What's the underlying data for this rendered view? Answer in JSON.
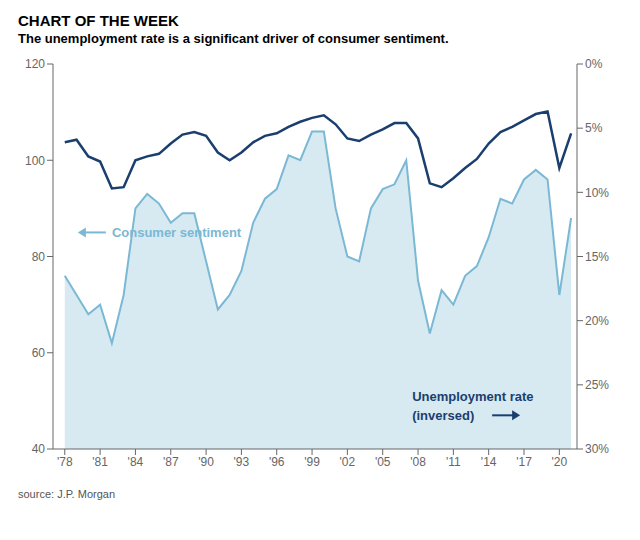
{
  "chart_data": {
    "type": "line",
    "title": "CHART OF THE WEEK",
    "subtitle": "The unemployment rate is a significant driver of consumer sentiment.",
    "source": "source: J.P. Morgan",
    "x": [
      1978,
      1979,
      1980,
      1981,
      1982,
      1983,
      1984,
      1985,
      1986,
      1987,
      1988,
      1989,
      1990,
      1991,
      1992,
      1993,
      1994,
      1995,
      1996,
      1997,
      1998,
      1999,
      2000,
      2001,
      2002,
      2003,
      2004,
      2005,
      2006,
      2007,
      2008,
      2009,
      2010,
      2011,
      2012,
      2013,
      2014,
      2015,
      2016,
      2017,
      2018,
      2019,
      2020,
      2021
    ],
    "xlim": [
      1977,
      2021.5
    ],
    "xticks": [
      {
        "value": 1978,
        "label": "'78"
      },
      {
        "value": 1981,
        "label": "'81"
      },
      {
        "value": 1984,
        "label": "'84"
      },
      {
        "value": 1987,
        "label": "'87"
      },
      {
        "value": 1990,
        "label": "'90"
      },
      {
        "value": 1993,
        "label": "'93"
      },
      {
        "value": 1996,
        "label": "'96"
      },
      {
        "value": 1999,
        "label": "'99"
      },
      {
        "value": 2002,
        "label": "'02"
      },
      {
        "value": 2005,
        "label": "'05"
      },
      {
        "value": 2008,
        "label": "'08"
      },
      {
        "value": 2011,
        "label": "'11"
      },
      {
        "value": 2014,
        "label": "'14"
      },
      {
        "value": 2017,
        "label": "'17"
      },
      {
        "value": 2020,
        "label": "'20"
      }
    ],
    "ylim": [
      40,
      120
    ],
    "yticks": [
      40,
      60,
      80,
      100,
      120
    ],
    "y2lim": [
      30,
      0
    ],
    "y2ticks": [
      {
        "value": 0,
        "label": "0%"
      },
      {
        "value": 5,
        "label": "5%"
      },
      {
        "value": 10,
        "label": "10%"
      },
      {
        "value": 15,
        "label": "15%"
      },
      {
        "value": 20,
        "label": "20%"
      },
      {
        "value": 25,
        "label": "25%"
      },
      {
        "value": 30,
        "label": "30%"
      }
    ],
    "grid": false,
    "series": [
      {
        "type": "area",
        "color": "#7bb8d4",
        "values": [
          76,
          72,
          68,
          70,
          62,
          72,
          90,
          93,
          91,
          87,
          89,
          89,
          79,
          69,
          72,
          77,
          87,
          92,
          94,
          101,
          100,
          106,
          106,
          90,
          80,
          79,
          90,
          94,
          95,
          100,
          75,
          64,
          73,
          70,
          76,
          78,
          84,
          92,
          91,
          96,
          98,
          96,
          72,
          88
        ]
      },
      {
        "type": "line",
        "color": "#1a3f6f",
        "axis": "y2",
        "values": [
          6.1,
          5.9,
          7.2,
          7.6,
          9.7,
          9.6,
          7.5,
          7.2,
          7.0,
          6.2,
          5.5,
          5.3,
          5.6,
          6.9,
          7.5,
          6.9,
          6.1,
          5.6,
          5.4,
          4.9,
          4.5,
          4.2,
          4.0,
          4.7,
          5.8,
          6.0,
          5.5,
          5.1,
          4.6,
          4.6,
          5.8,
          9.3,
          9.6,
          8.9,
          8.1,
          7.4,
          6.2,
          5.3,
          4.9,
          4.4,
          3.9,
          3.7,
          8.1,
          5.4
        ]
      }
    ],
    "annotations": [
      {
        "text": "Consumer sentiment",
        "x": 1982,
        "y": 85,
        "color": "#7bb8d4",
        "arrow": "left"
      },
      {
        "text": "Unemployment rate",
        "x": 2007.5,
        "y": 51,
        "color": "#1a3f6f"
      },
      {
        "text": "(inversed)",
        "x": 2007.5,
        "y": 47,
        "color": "#1a3f6f",
        "arrow": "right"
      }
    ]
  }
}
